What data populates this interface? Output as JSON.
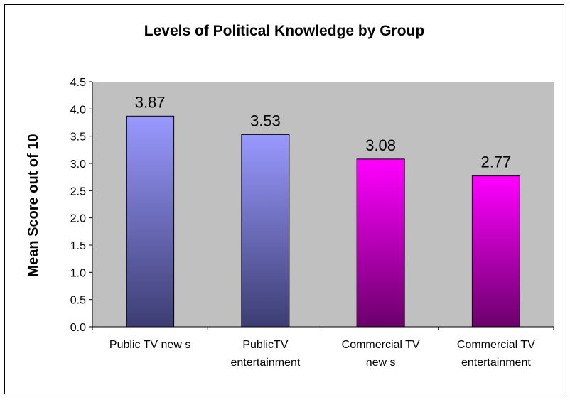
{
  "chart_data": {
    "type": "bar",
    "title": "Levels of Political Knowledge by Group",
    "ylabel": "Mean Score out of 10",
    "xlabel": "",
    "ylim": [
      0,
      4.5
    ],
    "yticks": [
      "0.0",
      "0.5",
      "1.0",
      "1.5",
      "2.0",
      "2.5",
      "3.0",
      "3.5",
      "4.0",
      "4.5"
    ],
    "categories": [
      [
        "Public TV new s"
      ],
      [
        "PublicTV",
        "entertainment"
      ],
      [
        "Commercial TV",
        "new s"
      ],
      [
        "Commercial TV",
        "entertainment"
      ]
    ],
    "values": [
      3.87,
      3.53,
      3.08,
      2.77
    ],
    "data_labels": [
      "3.87",
      "3.53",
      "3.08",
      "2.77"
    ],
    "grid": false,
    "plot_background": "#c0c0c0",
    "bar_colors": [
      {
        "top": "#9999ff",
        "bottom": "#3d3d73"
      },
      {
        "top": "#9999ff",
        "bottom": "#3d3d73"
      },
      {
        "top": "#ff00ff",
        "bottom": "#6b006b"
      },
      {
        "top": "#ff00ff",
        "bottom": "#6b006b"
      }
    ]
  }
}
